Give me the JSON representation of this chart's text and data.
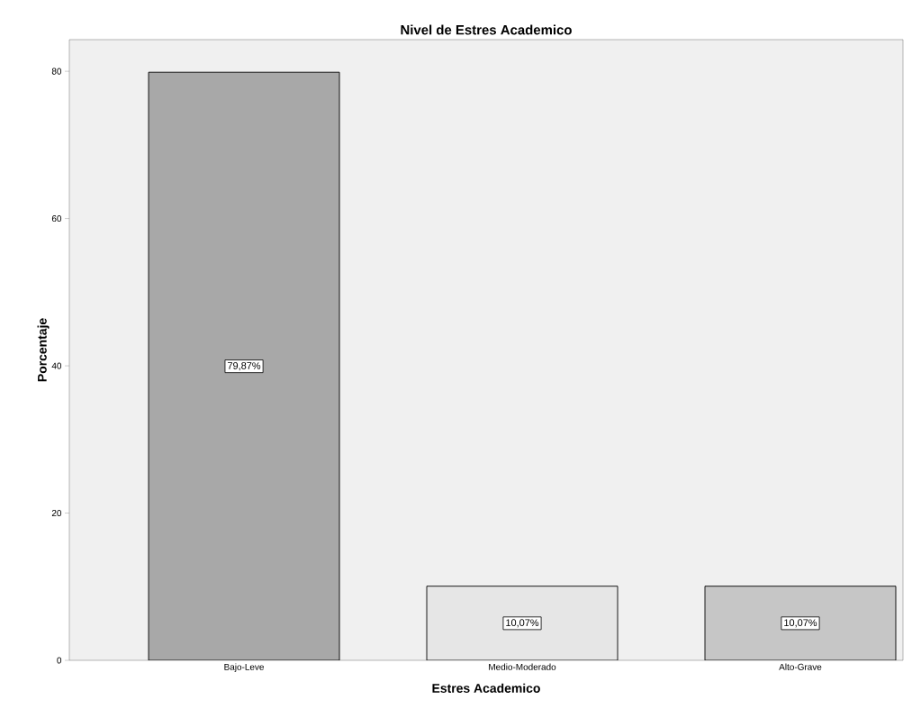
{
  "chart_data": {
    "type": "bar",
    "title": "Nivel de Estres Academico",
    "xlabel": "Estres Academico",
    "ylabel": "Porcentaje",
    "categories": [
      "Bajo-Leve",
      "Medio-Moderado",
      "Alto-Grave"
    ],
    "values": [
      79.87,
      10.07,
      10.07
    ],
    "value_labels": [
      "79,87%",
      "10,07%",
      "10,07%"
    ],
    "colors": [
      "#a8a8a8",
      "#e6e6e6",
      "#c6c6c6"
    ],
    "ylim": [
      0,
      84.3
    ],
    "yticks": [
      0,
      20,
      40,
      60,
      80
    ],
    "grid": false
  }
}
